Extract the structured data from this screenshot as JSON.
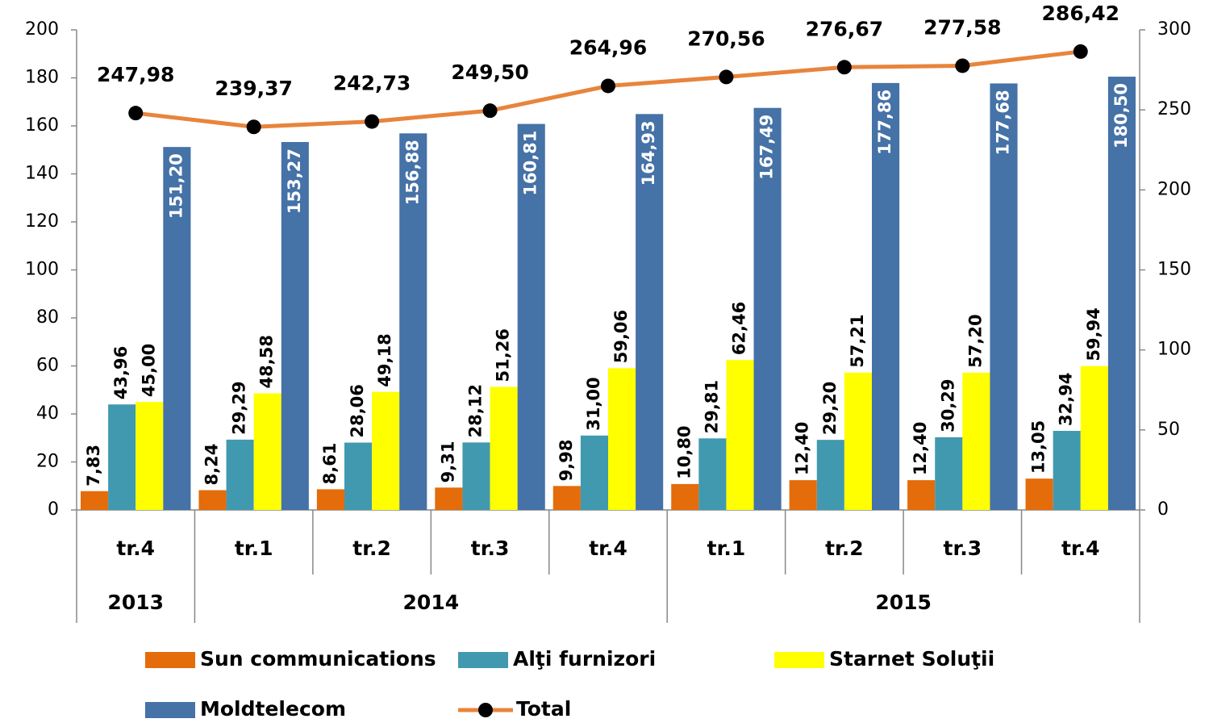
{
  "chart_data": {
    "type": "bar",
    "categories": [
      "tr.4",
      "tr.1",
      "tr.2",
      "tr.3",
      "tr.4",
      "tr.1",
      "tr.2",
      "tr.3",
      "tr.4"
    ],
    "years": [
      "2013",
      "2014",
      "2014",
      "2014",
      "2014",
      "2015",
      "2015",
      "2015",
      "2015"
    ],
    "ylim": [
      0,
      200
    ],
    "yticks": [
      0,
      20,
      40,
      60,
      80,
      100,
      120,
      140,
      160,
      180,
      200
    ],
    "y2lim": [
      0,
      300
    ],
    "y2ticks": [
      0,
      50,
      100,
      150,
      200,
      250,
      300
    ],
    "legend": "bottom",
    "series": [
      {
        "name": "Sun communications",
        "color": "#e46c0a",
        "type": "bar",
        "values": [
          7.83,
          8.24,
          8.61,
          9.31,
          9.98,
          10.8,
          12.4,
          12.4,
          13.05
        ],
        "value_labels": [
          "7,83",
          "8,24",
          "8,61",
          "9,31",
          "9,98",
          "10,80",
          "12,40",
          "12,40",
          "13,05"
        ]
      },
      {
        "name": "Alţi furnizori",
        "color": "#4199b0",
        "type": "bar",
        "values": [
          43.96,
          29.29,
          28.06,
          28.12,
          31.0,
          29.81,
          29.2,
          30.29,
          32.94
        ],
        "value_labels": [
          "43,96",
          "29,29",
          "28,06",
          "28,12",
          "31,00",
          "29,81",
          "29,20",
          "30,29",
          "32,94"
        ]
      },
      {
        "name": "Starnet Soluţii",
        "color": "#ffff00",
        "type": "bar",
        "values": [
          45.0,
          48.58,
          49.18,
          51.26,
          59.06,
          62.46,
          57.21,
          57.2,
          59.94
        ],
        "value_labels": [
          "45,00",
          "48,58",
          "49,18",
          "51,26",
          "59,06",
          "62,46",
          "57,21",
          "57,20",
          "59,94"
        ]
      },
      {
        "name": "Moldtelecom",
        "color": "#4572a7",
        "type": "bar",
        "label_color": "#ffffff",
        "values": [
          151.2,
          153.27,
          156.88,
          160.81,
          164.93,
          167.49,
          177.86,
          177.68,
          180.5
        ],
        "value_labels": [
          "151,20",
          "153,27",
          "156,88",
          "160,81",
          "164,93",
          "167,49",
          "177,86",
          "177,68",
          "180,50"
        ]
      },
      {
        "name": "Total",
        "color": "#e8843c",
        "marker_color": "#000000",
        "type": "line",
        "axis": "y2",
        "values": [
          247.98,
          239.37,
          242.73,
          249.5,
          264.96,
          270.56,
          276.67,
          277.58,
          286.42
        ],
        "value_labels": [
          "247,98",
          "239,37",
          "242,73",
          "249,50",
          "264,96",
          "270,56",
          "276,67",
          "277,58",
          "286,42"
        ]
      }
    ]
  }
}
